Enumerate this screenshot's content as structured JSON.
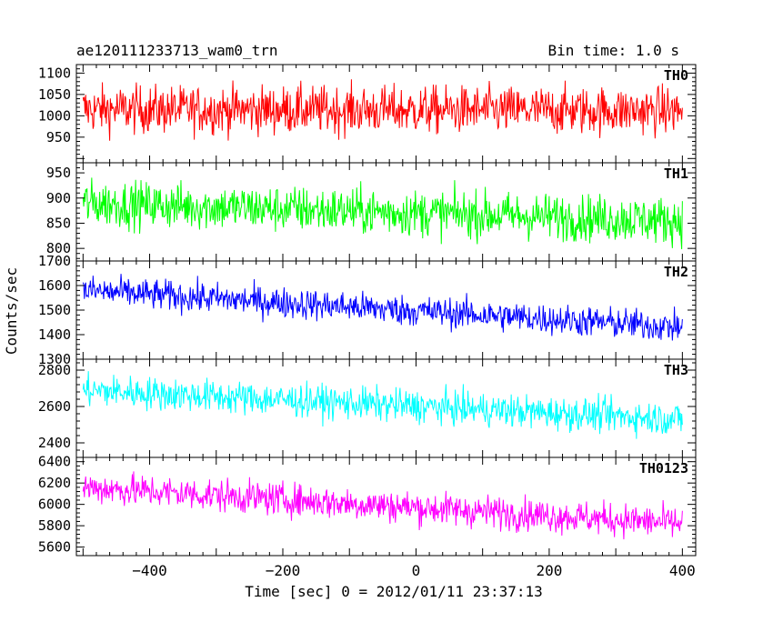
{
  "header": {
    "left_title": "ae120111233713_wam0_trn",
    "right_title": "Bin time: 1.0 s"
  },
  "chart_data": {
    "type": "line",
    "title": "ae120111233713_wam0_trn",
    "subtitle": "Bin time: 1.0 s",
    "xlabel": "Time [sec] 0 = 2012/01/11 23:37:13",
    "ylabel": "Counts/sec",
    "xlim": [
      -510,
      420
    ],
    "x_ticks": [
      -400,
      -200,
      0,
      200,
      400
    ],
    "x_start": -500,
    "x_end": 400,
    "bin_time": 1.0,
    "grid": false,
    "panels": [
      {
        "name": "TH0",
        "color": "#ff0000",
        "ylim": [
          890,
          1120
        ],
        "y_ticks": [
          950,
          1000,
          1050,
          1100
        ],
        "trend_start": 1015,
        "trend_end": 1012,
        "noise": 40,
        "min": 920,
        "max": 1120
      },
      {
        "name": "TH1",
        "color": "#00ff00",
        "ylim": [
          775,
          970
        ],
        "y_ticks": [
          800,
          850,
          900,
          950
        ],
        "trend_start": 890,
        "trend_end": 855,
        "noise": 33,
        "min": 780,
        "max": 965
      },
      {
        "name": "TH2",
        "color": "#0000ff",
        "ylim": [
          1300,
          1700
        ],
        "y_ticks": [
          1300,
          1400,
          1500,
          1600,
          1700
        ],
        "trend_start": 1580,
        "trend_end": 1430,
        "noise": 45,
        "min": 1330,
        "max": 1700
      },
      {
        "name": "TH3",
        "color": "#00ffff",
        "ylim": [
          2320,
          2860
        ],
        "y_ticks": [
          2400,
          2600,
          2800
        ],
        "trend_start": 2690,
        "trend_end": 2530,
        "noise": 65,
        "min": 2420,
        "max": 2850
      },
      {
        "name": "TH0123",
        "color": "#ff00ff",
        "ylim": [
          5520,
          6440
        ],
        "y_ticks": [
          5600,
          5800,
          6000,
          6200,
          6400
        ],
        "trend_start": 6160,
        "trend_end": 5820,
        "noise": 110,
        "min": 5570,
        "max": 6430
      }
    ]
  }
}
